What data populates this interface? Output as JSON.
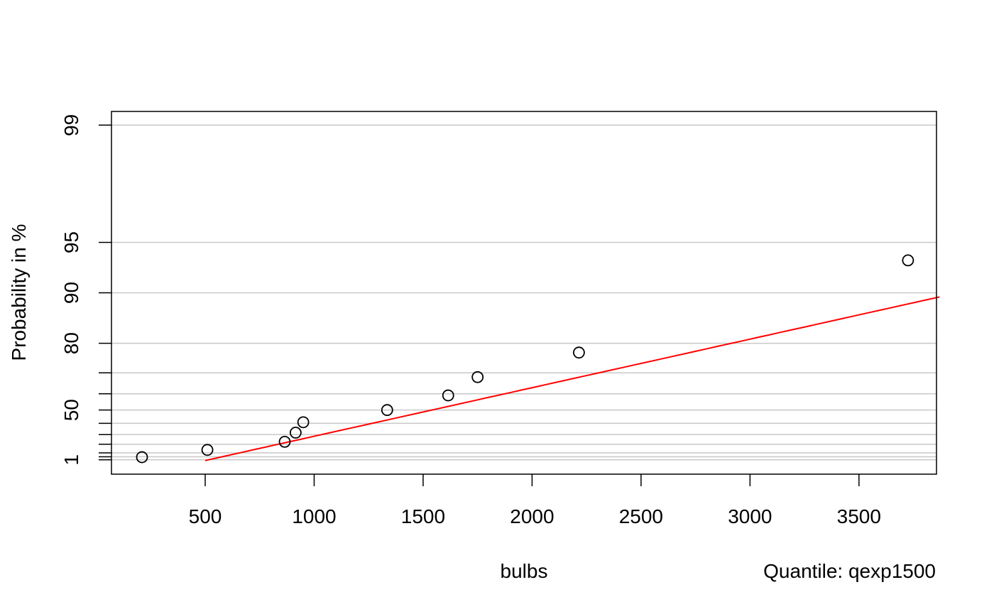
{
  "chart_data": {
    "type": "scatter",
    "title": "",
    "xlabel": "bulbs",
    "ylabel": "Probability in %",
    "annotation": "Quantile: qexp1500",
    "y_scale": "exponential-probability",
    "xlim": [
      80,
      3870
    ],
    "x_ticks": [
      500,
      1000,
      1500,
      2000,
      2500,
      3000,
      3500
    ],
    "y_ticks": [
      {
        "p": 99,
        "label": "99"
      },
      {
        "p": 95,
        "label": "95"
      },
      {
        "p": 90,
        "label": "90"
      },
      {
        "p": 80,
        "label": "80"
      },
      {
        "p": 70,
        "label": ""
      },
      {
        "p": 60,
        "label": ""
      },
      {
        "p": 50,
        "label": "50"
      },
      {
        "p": 40,
        "label": ""
      },
      {
        "p": 30,
        "label": ""
      },
      {
        "p": 20,
        "label": ""
      },
      {
        "p": 10,
        "label": ""
      },
      {
        "p": 5,
        "label": ""
      },
      {
        "p": 1,
        "label": "1"
      }
    ],
    "grid": "horizontal",
    "points": [
      {
        "x": 210,
        "p": 4.5
      },
      {
        "x": 510,
        "p": 13.6
      },
      {
        "x": 865,
        "p": 22.7
      },
      {
        "x": 915,
        "p": 31.8
      },
      {
        "x": 950,
        "p": 40.9
      },
      {
        "x": 1335,
        "p": 50.0
      },
      {
        "x": 1615,
        "p": 59.1
      },
      {
        "x": 1750,
        "p": 68.2
      },
      {
        "x": 2215,
        "p": 77.3
      },
      {
        "x": 3725,
        "p": 93.6
      }
    ],
    "fit_line": {
      "color": "#ff0000",
      "rate_denominator": 1500,
      "threshold": 500
    }
  }
}
